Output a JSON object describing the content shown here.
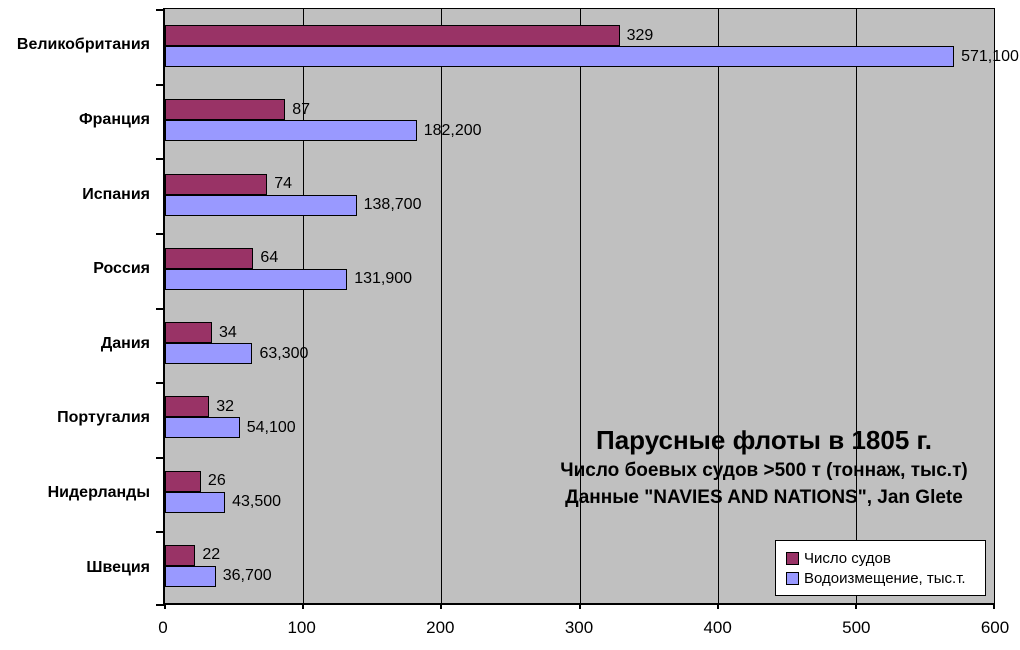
{
  "chart_data": {
    "type": "bar",
    "orientation": "horizontal",
    "title": "Парусные флоты в 1805 г.",
    "subtitle": "Число боевых судов >500 т (тоннаж, тыс.т)",
    "source_line": "Данные \"NAVIES AND NATIONS\", Jan Glete",
    "categories": [
      "Великобритания",
      "Франция",
      "Испания",
      "Россия",
      "Дания",
      "Португалия",
      "Нидерланды",
      "Швеция"
    ],
    "series": [
      {
        "name": "Число судов",
        "color": "#993366",
        "values": [
          329,
          87,
          74,
          64,
          34,
          32,
          26,
          22
        ],
        "labels": [
          "329",
          "87",
          "74",
          "64",
          "34",
          "32",
          "26",
          "22"
        ]
      },
      {
        "name": "Водоизмещение, тыс.т.",
        "color": "#9999FF",
        "values": [
          571.1,
          182.2,
          138.7,
          131.9,
          63.3,
          54.1,
          43.5,
          36.7
        ],
        "labels": [
          "571,100",
          "182,200",
          "138,700",
          "131,900",
          "63,300",
          "54,100",
          "43,500",
          "36,700"
        ]
      }
    ],
    "x_axis": {
      "min": 0,
      "max": 600,
      "tick_values": [
        0,
        100,
        200,
        300,
        400,
        500,
        600
      ],
      "tick_labels": [
        "0",
        "100",
        "200",
        "300",
        "400",
        "500",
        "600"
      ]
    },
    "layout": {
      "grid": "vertical-major",
      "legend_position": "inside-bottom-right",
      "value_labels": "outside-end"
    },
    "colors": {
      "plot_background": "#C0C0C0",
      "page_background": "#FFFFFF",
      "gridline": "#000000",
      "bar_border": "#000000",
      "text": "#000000"
    }
  }
}
